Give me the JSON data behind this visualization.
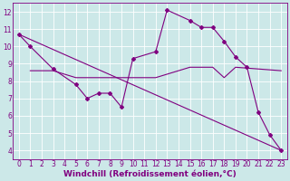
{
  "title": "",
  "xlabel": "Windchill (Refroidissement éolien,°C)",
  "ylabel": "",
  "bg_color": "#cce8e8",
  "line_color": "#800080",
  "grid_color": "#ffffff",
  "xlim": [
    -0.5,
    23.5
  ],
  "ylim": [
    3.5,
    12.5
  ],
  "xticks": [
    0,
    1,
    2,
    3,
    4,
    5,
    6,
    7,
    8,
    9,
    10,
    11,
    12,
    13,
    14,
    15,
    16,
    17,
    18,
    19,
    20,
    21,
    22,
    23
  ],
  "yticks": [
    4,
    5,
    6,
    7,
    8,
    9,
    10,
    11,
    12
  ],
  "line1_x": [
    0,
    1,
    3,
    5,
    6,
    7,
    8,
    9,
    10,
    12,
    13,
    15,
    16,
    17,
    18,
    19,
    20,
    21,
    22,
    23
  ],
  "line1_y": [
    10.7,
    10.0,
    8.7,
    7.8,
    7.0,
    7.3,
    7.3,
    6.5,
    9.3,
    9.7,
    12.1,
    11.5,
    11.1,
    11.1,
    10.3,
    9.4,
    8.8,
    6.2,
    4.9,
    4.0
  ],
  "line2_x": [
    1,
    3,
    5,
    6,
    7,
    8,
    10,
    12,
    15,
    16,
    17,
    18,
    19,
    23
  ],
  "line2_y": [
    8.6,
    8.6,
    8.2,
    8.2,
    8.2,
    8.2,
    8.2,
    8.2,
    8.8,
    8.8,
    8.8,
    8.2,
    8.8,
    8.6
  ],
  "line3_x": [
    0,
    23
  ],
  "line3_y": [
    10.7,
    4.0
  ],
  "marker": "D",
  "markersize": 2.0,
  "linewidth": 0.8,
  "xlabel_fontsize": 6.5,
  "tick_fontsize": 5.5
}
